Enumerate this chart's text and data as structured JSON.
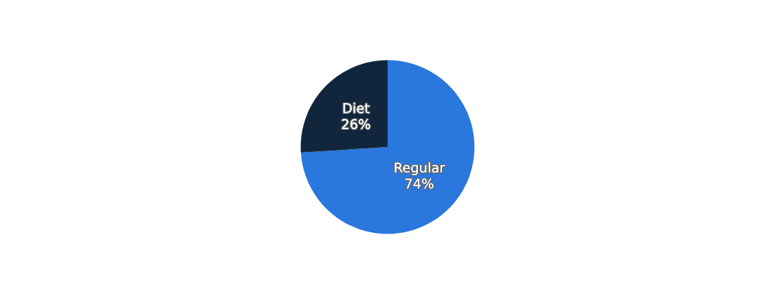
{
  "chart_data": {
    "type": "pie",
    "categories": [
      "Regular",
      "Diet"
    ],
    "values": [
      74,
      26
    ],
    "colors": [
      "#2a77de",
      "#11263c"
    ],
    "value_labels": [
      "74%",
      "26%"
    ]
  }
}
